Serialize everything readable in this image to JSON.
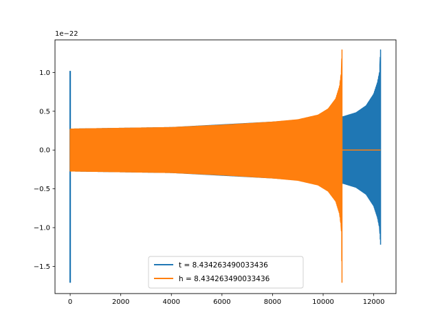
{
  "chart_data": {
    "type": "line",
    "title": "",
    "xlabel": "",
    "ylabel": "",
    "y_offset_label": "1e−22",
    "xlim": [
      -600,
      12880
    ],
    "ylim": [
      -1.85,
      1.42
    ],
    "x_ticks": [
      {
        "value": 0,
        "label": "0"
      },
      {
        "value": 2000,
        "label": "2000"
      },
      {
        "value": 4000,
        "label": "4000"
      },
      {
        "value": 6000,
        "label": "6000"
      },
      {
        "value": 8000,
        "label": "8000"
      },
      {
        "value": 10000,
        "label": "10000"
      },
      {
        "value": 12000,
        "label": "12000"
      }
    ],
    "y_ticks": [
      {
        "value": 1.0,
        "label": "1.0"
      },
      {
        "value": 0.5,
        "label": "0.5"
      },
      {
        "value": 0.0,
        "label": "0.0"
      },
      {
        "value": -0.5,
        "label": "−0.5"
      },
      {
        "value": -1.0,
        "label": "−1.0"
      },
      {
        "value": -1.5,
        "label": "−1.5"
      }
    ],
    "grid": false,
    "legend_position": "lower center",
    "series": [
      {
        "name": "t = 8.434263490033436",
        "color": "#1f77b4",
        "spike": {
          "x": 0,
          "y_max": 1.02,
          "y_min": -1.71
        },
        "envelope": [
          {
            "x": 0,
            "upper": 0.27,
            "lower": -0.27
          },
          {
            "x": 4000,
            "upper": 0.29,
            "lower": -0.29
          },
          {
            "x": 8000,
            "upper": 0.36,
            "lower": -0.36
          },
          {
            "x": 10500,
            "upper": 0.42,
            "lower": -0.42
          },
          {
            "x": 10800,
            "upper": 0.43,
            "lower": -0.43
          },
          {
            "x": 11300,
            "upper": 0.48,
            "lower": -0.48
          },
          {
            "x": 11700,
            "upper": 0.57,
            "lower": -0.57
          },
          {
            "x": 12000,
            "upper": 0.72,
            "lower": -0.72
          },
          {
            "x": 12150,
            "upper": 0.87,
            "lower": -0.87
          },
          {
            "x": 12230,
            "upper": 1.0,
            "lower": -1.0
          },
          {
            "x": 12270,
            "upper": 1.29,
            "lower": -1.22
          }
        ]
      },
      {
        "name": "h = 8.434263490033436",
        "color": "#ff7f0e",
        "envelope": [
          {
            "x": 0,
            "upper": 0.27,
            "lower": -0.27
          },
          {
            "x": 2000,
            "upper": 0.28,
            "lower": -0.28
          },
          {
            "x": 4000,
            "upper": 0.29,
            "lower": -0.29
          },
          {
            "x": 6000,
            "upper": 0.32,
            "lower": -0.32
          },
          {
            "x": 8000,
            "upper": 0.36,
            "lower": -0.36
          },
          {
            "x": 9000,
            "upper": 0.39,
            "lower": -0.39
          },
          {
            "x": 9800,
            "upper": 0.45,
            "lower": -0.45
          },
          {
            "x": 10200,
            "upper": 0.53,
            "lower": -0.53
          },
          {
            "x": 10500,
            "upper": 0.66,
            "lower": -0.66
          },
          {
            "x": 10650,
            "upper": 0.82,
            "lower": -0.82
          },
          {
            "x": 10720,
            "upper": 1.0,
            "lower": -1.0
          },
          {
            "x": 10745,
            "upper": 1.29,
            "lower": -1.71
          }
        ],
        "tail": {
          "x_start": 10745,
          "x_end": 12270,
          "y": 0.0
        }
      }
    ]
  }
}
